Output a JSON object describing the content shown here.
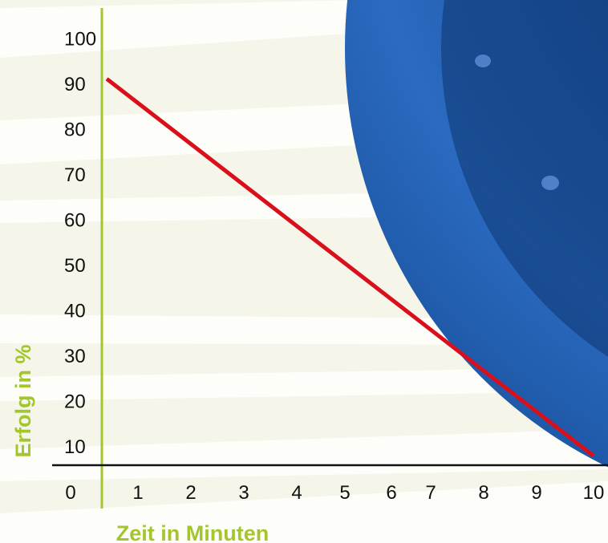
{
  "colors": {
    "background": "#f5f6e9",
    "band": "#ffffff",
    "accent": "#a3c62f",
    "line": "#d9101c",
    "axis": "#111111",
    "disc": "#1f59a8",
    "disc_dark": "#0e3570"
  },
  "chart_data": {
    "type": "line",
    "title": "",
    "xlabel": "Zeit in Minuten",
    "ylabel": "Erfolg in %",
    "xlim": [
      0,
      10
    ],
    "ylim": [
      0,
      100
    ],
    "x_ticks": [
      "0",
      "1",
      "2",
      "3",
      "4",
      "5",
      "6",
      "7",
      "8",
      "9",
      "10"
    ],
    "y_ticks": [
      "10",
      "20",
      "30",
      "40",
      "50",
      "60",
      "70",
      "80",
      "90",
      "100"
    ],
    "grid": false,
    "legend": "none",
    "series": [
      {
        "x": [
          0.1,
          10
        ],
        "y": [
          91,
          8
        ]
      }
    ]
  }
}
